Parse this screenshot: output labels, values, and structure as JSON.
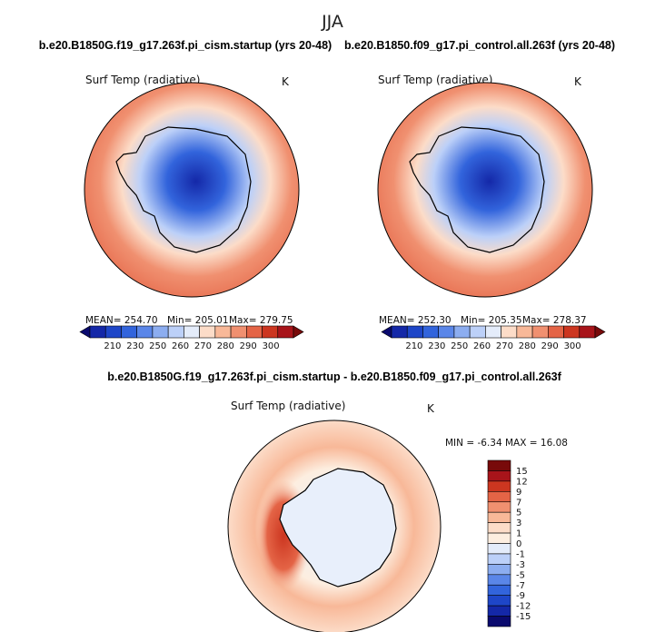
{
  "chart_data": {
    "type": "heatmap",
    "title": "JJA",
    "colors": {
      "abs_scale": [
        "#0a0a6e",
        "#1428a8",
        "#1e46c8",
        "#3264dc",
        "#5a86e8",
        "#8cadf0",
        "#bcd0f8",
        "#e4ecfa",
        "#fcdcc8",
        "#f8b898",
        "#f09070",
        "#e46446",
        "#cc3620",
        "#a8141a",
        "#780a0a"
      ],
      "diff_scale": [
        "#0a0a6e",
        "#1428a8",
        "#1e46c8",
        "#3264dc",
        "#5a86e8",
        "#8cadf0",
        "#bcd0f8",
        "#e4ecfa",
        "#fdeee0",
        "#fcdcc8",
        "#f8b898",
        "#f09070",
        "#e46446",
        "#cc3620",
        "#a8141a",
        "#780a0a"
      ]
    },
    "panels": [
      {
        "title": "b.e20.B1850G.f19_g17.263f.pi_cism.startup (yrs 20-48)",
        "variable": "Surf Temp (radiative)",
        "units": "K",
        "mean": "MEAN= 254.70",
        "min": "Min= 205.01",
        "max": "Max= 279.75",
        "colorbar_ticks": [
          "210",
          "230",
          "250",
          "260",
          "270",
          "280",
          "290",
          "300"
        ],
        "field": {
          "interior": 210,
          "plateau": 222,
          "coast": 248,
          "seaice": 258,
          "ocean": 274,
          "ocean_north": 278
        }
      },
      {
        "title": "b.e20.B1850.f09_g17.pi_control.all.263f (yrs 20-48)",
        "variable": "Surf Temp (radiative)",
        "units": "K",
        "mean": "MEAN= 252.30",
        "min": "Min= 205.35",
        "max": "Max= 278.37",
        "colorbar_ticks": [
          "210",
          "230",
          "250",
          "260",
          "270",
          "280",
          "290",
          "300"
        ],
        "field": {
          "interior": 208,
          "plateau": 221,
          "coast": 246,
          "seaice": 256,
          "ocean": 273,
          "ocean_north": 277
        }
      },
      {
        "title": "b.e20.B1850G.f19_g17.263f.pi_cism.startup - b.e20.B1850.f09_g17.pi_control.all.263f",
        "variable": "Surf Temp (radiative)",
        "units": "K",
        "minmax": "MIN =   -6.34  MAX =   16.08",
        "colorbar_ticks": [
          "15",
          "12",
          "9",
          "7",
          "5",
          "3",
          "1",
          "0",
          "-1",
          "-3",
          "-5",
          "-7",
          "-9",
          "-12",
          "-15"
        ],
        "field": {
          "continent": -0.5,
          "weddell_max": 12,
          "ross_peak": 8,
          "ring": 4
        }
      }
    ]
  }
}
